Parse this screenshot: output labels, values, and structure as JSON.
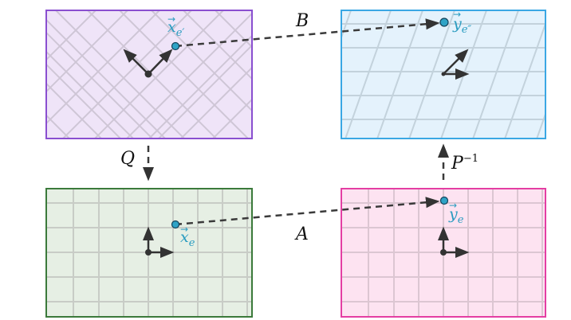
{
  "colors": {
    "purple_stroke": "#8a4fd0",
    "purple_fill": "#efe4f8",
    "blue_stroke": "#3aa7e4",
    "blue_fill": "#e4f2fc",
    "green_stroke": "#3b7a3b",
    "green_fill": "#e6efe4",
    "pink_stroke": "#e43ea3",
    "pink_fill": "#fde3f1",
    "grid": "#c9c4cc",
    "vector_point": "#2fa3c6",
    "arrow": "#333333"
  },
  "labels": {
    "map_top": "B",
    "map_left": "Q",
    "map_right_base": "P",
    "map_right_exp": "−1",
    "map_bottom": "A"
  },
  "vectors": {
    "x_e_prime": {
      "base": "x",
      "sub": "e′"
    },
    "y_e_dprime": {
      "base": "y",
      "sub": "e″"
    },
    "x_e": {
      "base": "x",
      "sub": "e"
    },
    "y_e": {
      "base": "y",
      "sub": "e"
    }
  }
}
